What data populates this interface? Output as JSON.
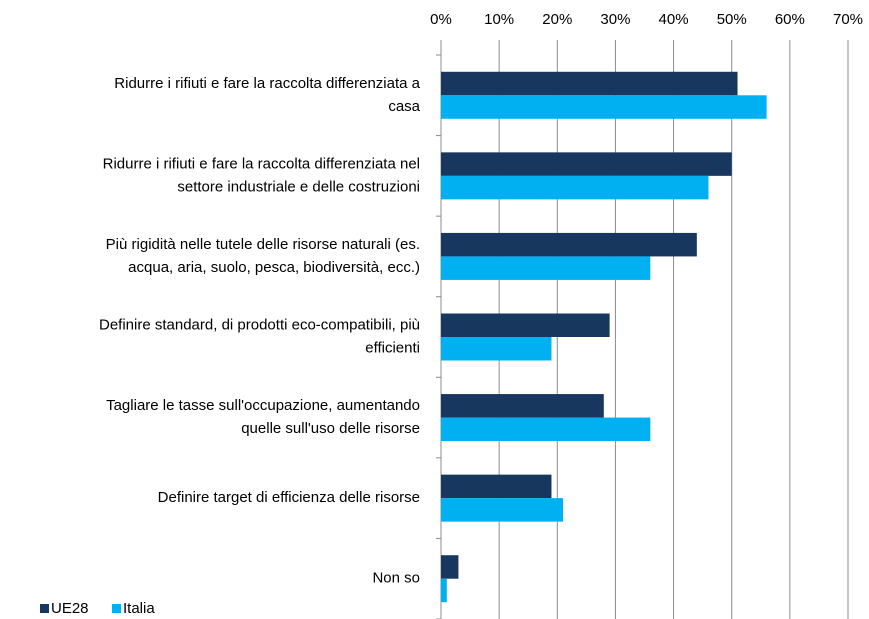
{
  "chart_data": {
    "type": "barh",
    "categories": [
      [
        "Ridurre i rifiuti e fare la raccolta differenziata a",
        "casa"
      ],
      [
        "Ridurre i rifiuti e fare la raccolta differenziata nel",
        "settore industriale e delle costruzioni"
      ],
      [
        "Più rigidità nelle tutele delle risorse naturali (es.",
        "acqua, aria, suolo, pesca, biodiversità, ecc.)"
      ],
      [
        "Definire standard, di prodotti eco-compatibili, più",
        "efficienti"
      ],
      [
        "Tagliare le tasse sull'occupazione, aumentando",
        "quelle sull'uso delle risorse"
      ],
      [
        "Definire target di efficienza delle risorse"
      ],
      [
        "Non so"
      ]
    ],
    "series": [
      {
        "name": "UE28",
        "color": "#17375e",
        "values": [
          51,
          50,
          44,
          29,
          28,
          19,
          3
        ]
      },
      {
        "name": "Italia",
        "color": "#00b0f0",
        "values": [
          56,
          46,
          36,
          19,
          36,
          21,
          1
        ]
      }
    ],
    "xlim": [
      0,
      70
    ],
    "xticks": [
      {
        "value": 0,
        "label": "0%"
      },
      {
        "value": 10,
        "label": "10%"
      },
      {
        "value": 20,
        "label": "20%"
      },
      {
        "value": 30,
        "label": "30%"
      },
      {
        "value": 40,
        "label": "40%"
      },
      {
        "value": 50,
        "label": "50%"
      },
      {
        "value": 60,
        "label": "60%"
      },
      {
        "value": 70,
        "label": "70%"
      }
    ],
    "grid": true,
    "legend": "bottom-left"
  }
}
